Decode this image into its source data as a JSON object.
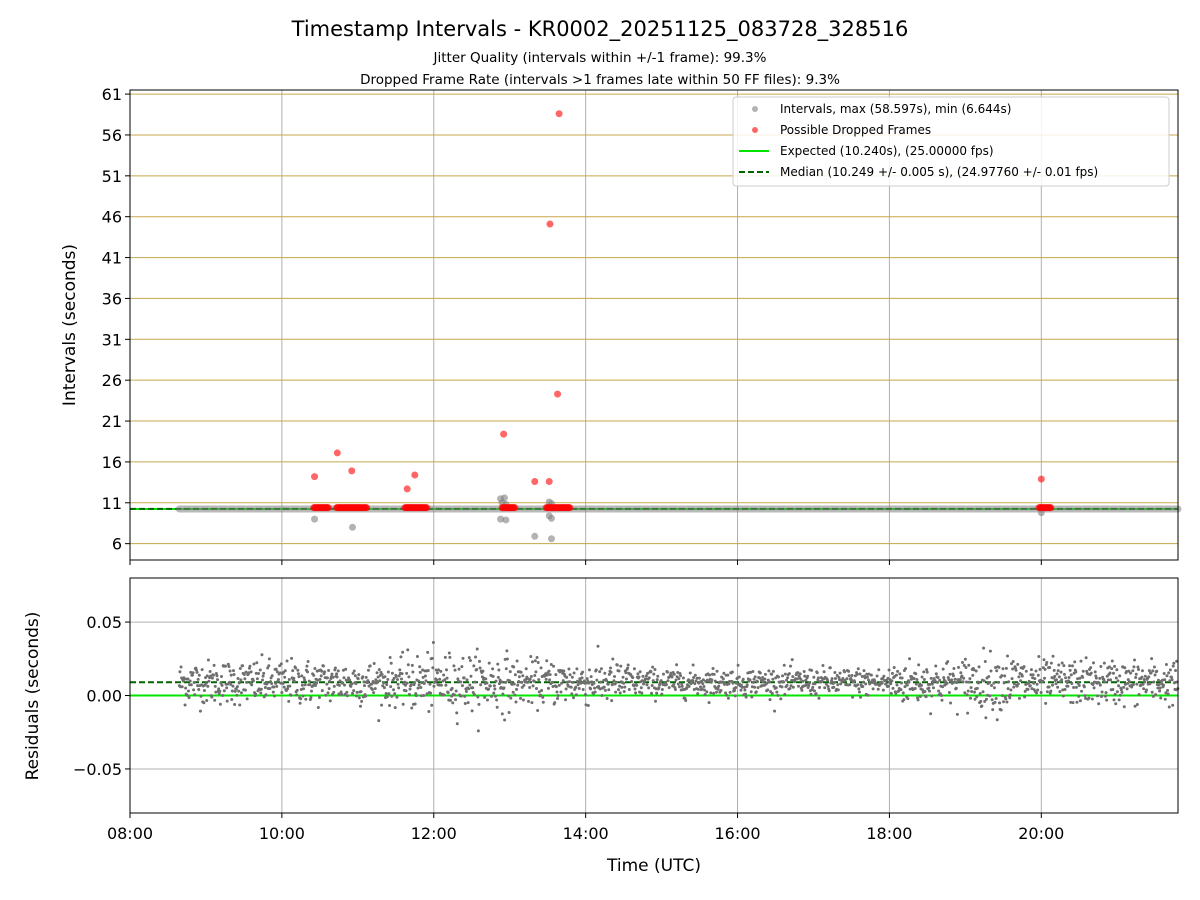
{
  "chart_data": {
    "type": "scatter",
    "title": "Timestamp Intervals - KR0002_20251125_083728_328516",
    "subtitle_1": "Jitter Quality (intervals within +/-1 frame): 99.3%",
    "subtitle_2": "Dropped Frame Rate (intervals >1 frames late within 50 FF files): 9.3%",
    "xlabel": "Time (UTC)",
    "x_range_hours": [
      8.0,
      21.8
    ],
    "x_ticks": [
      "08:00",
      "10:00",
      "12:00",
      "14:00",
      "16:00",
      "18:00",
      "20:00"
    ],
    "top_panel": {
      "ylabel": "Intervals (seconds)",
      "ylim": [
        4.0,
        61.5
      ],
      "y_ticks": [
        "6",
        "11",
        "16",
        "21",
        "26",
        "31",
        "36",
        "41",
        "46",
        "51",
        "56",
        "61"
      ],
      "expected_interval": 10.24,
      "median_interval": 10.249,
      "data_start_hour": 8.65,
      "data_end_hour": 21.8,
      "interval_outliers": [
        [
          10.43,
          9.0
        ],
        [
          10.93,
          8.0
        ],
        [
          12.88,
          11.5
        ],
        [
          12.93,
          11.6
        ],
        [
          12.9,
          11.0
        ],
        [
          12.95,
          10.8
        ],
        [
          12.88,
          9.0
        ],
        [
          12.95,
          8.9
        ],
        [
          13.33,
          6.9
        ],
        [
          13.52,
          11.1
        ],
        [
          13.55,
          10.9
        ],
        [
          13.52,
          9.4
        ],
        [
          13.55,
          9.1
        ],
        [
          13.55,
          6.6
        ],
        [
          20.0,
          9.8
        ]
      ],
      "dropped_frames": [
        [
          10.43,
          14.2
        ],
        [
          10.73,
          17.1
        ],
        [
          10.92,
          14.9
        ],
        [
          11.65,
          12.7
        ],
        [
          11.75,
          14.4
        ],
        [
          12.92,
          19.4
        ],
        [
          13.33,
          13.6
        ],
        [
          13.52,
          13.6
        ],
        [
          13.53,
          45.1
        ],
        [
          13.63,
          24.3
        ],
        [
          13.65,
          58.6
        ],
        [
          20.0,
          13.9
        ]
      ],
      "dropped_frame_clusters": [
        [
          10.42,
          10.62
        ],
        [
          10.72,
          11.12
        ],
        [
          11.62,
          11.92
        ],
        [
          12.9,
          13.08
        ],
        [
          13.48,
          13.8
        ],
        [
          19.97,
          20.13
        ]
      ],
      "legend": [
        "Intervals, max (58.597s), min (6.644s)",
        "Possible Dropped Frames",
        "Expected (10.240s), (25.00000 fps)",
        "Median (10.249 +/- 0.005 s), (24.97760 +/- 0.01 fps)"
      ]
    },
    "bottom_panel": {
      "ylabel": "Residuals (seconds)",
      "ylim": [
        -0.08,
        0.08
      ],
      "y_ticks": [
        "−0.05",
        "0.00",
        "0.05"
      ],
      "y_tick_values": [
        -0.05,
        0.0,
        0.05
      ],
      "expected_residual": 0.0,
      "median_residual": 0.009,
      "residual_noise_std": 0.0075
    },
    "colors": {
      "intervals": "#808080",
      "dropped": "#ff0000",
      "expected": "#00e400",
      "median": "#006400",
      "grid_x": "#b0b0b0",
      "grid_y_top": "#c8a74a",
      "residual_points": "#6f6f6f"
    }
  }
}
